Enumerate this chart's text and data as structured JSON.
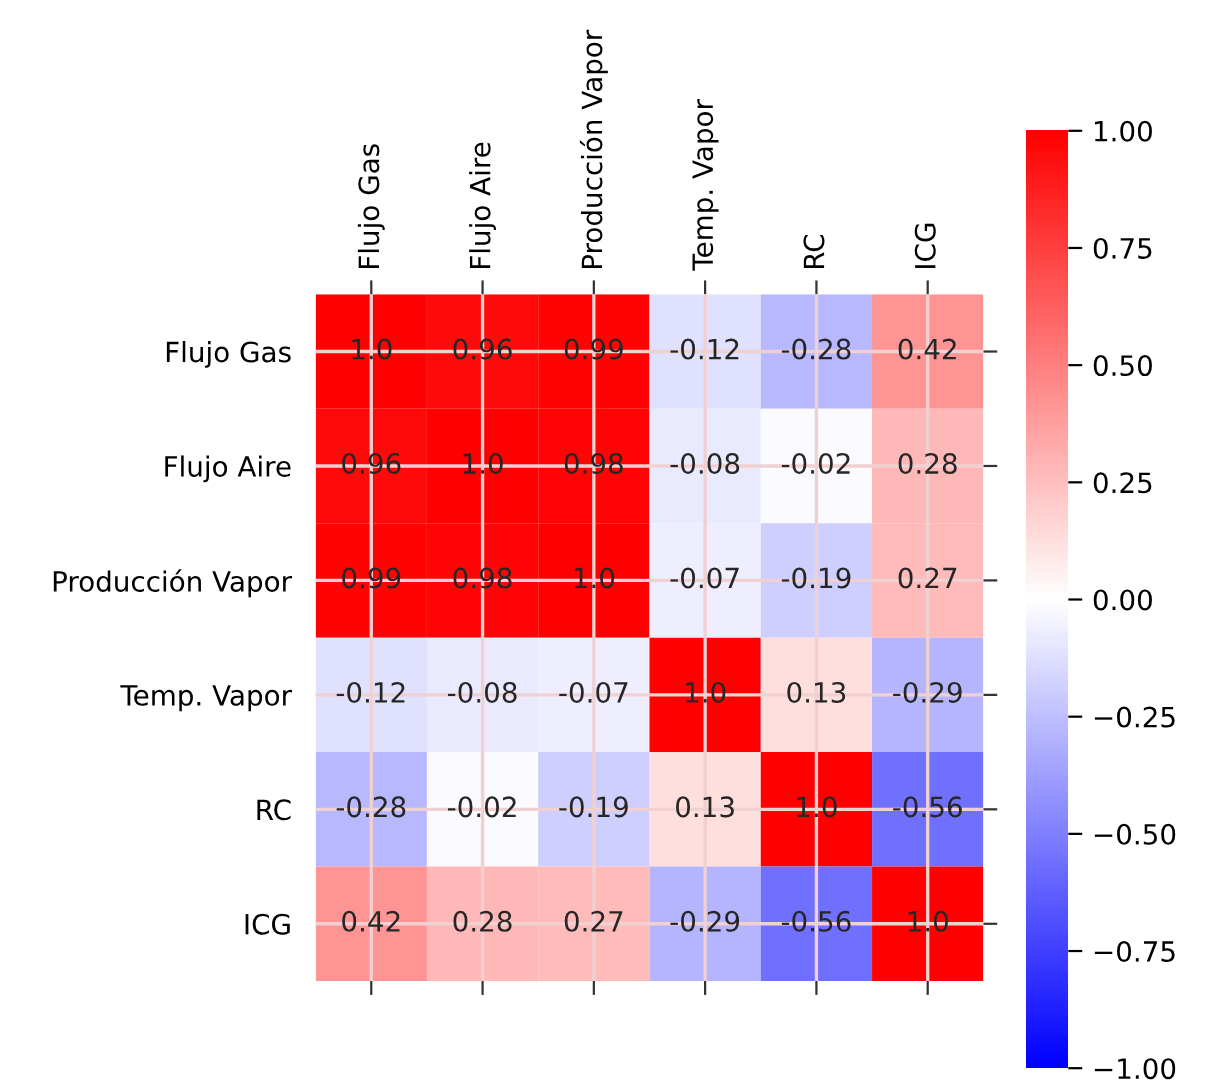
{
  "chart_data": {
    "type": "heatmap",
    "categories": [
      "Flujo Gas",
      "Flujo Aire",
      "Producción Vapor",
      "Temp. Vapor",
      "RC",
      "ICG"
    ],
    "y_categories": [
      "Flujo Gas",
      "Flujo Aire",
      "Producción Vapor",
      "Temp. Vapor",
      "RC",
      "ICG"
    ],
    "cells": [
      [
        1.0,
        0.96,
        0.99,
        -0.12,
        -0.28,
        0.42
      ],
      [
        0.96,
        1.0,
        0.98,
        -0.08,
        -0.02,
        0.28
      ],
      [
        0.99,
        0.98,
        1.0,
        -0.07,
        -0.19,
        0.27
      ],
      [
        -0.12,
        -0.08,
        -0.07,
        1.0,
        0.13,
        -0.29
      ],
      [
        -0.28,
        -0.02,
        -0.19,
        0.13,
        1.0,
        -0.56
      ],
      [
        0.42,
        0.28,
        0.27,
        -0.29,
        -0.56,
        1.0
      ]
    ],
    "cell_labels": [
      [
        "1.0",
        "0.96",
        "0.99",
        "-0.12",
        "-0.28",
        "0.42"
      ],
      [
        "0.96",
        "1.0",
        "0.98",
        "-0.08",
        "-0.02",
        "0.28"
      ],
      [
        "0.99",
        "0.98",
        "1.0",
        "-0.07",
        "-0.19",
        "0.27"
      ],
      [
        "-0.12",
        "-0.08",
        "-0.07",
        "1.0",
        "0.13",
        "-0.29"
      ],
      [
        "-0.28",
        "-0.02",
        "-0.19",
        "0.13",
        "1.0",
        "-0.56"
      ],
      [
        "0.42",
        "0.28",
        "0.27",
        "-0.29",
        "-0.56",
        "1.0"
      ]
    ],
    "clim": [
      -1.0,
      1.0
    ],
    "cticks": [
      {
        "value": 1.0,
        "label": "1.00"
      },
      {
        "value": 0.75,
        "label": "0.75"
      },
      {
        "value": 0.5,
        "label": "0.50"
      },
      {
        "value": 0.25,
        "label": "0.25"
      },
      {
        "value": 0.0,
        "label": "0.00"
      },
      {
        "value": -0.25,
        "label": "−0.25"
      },
      {
        "value": -0.5,
        "label": "−0.50"
      },
      {
        "value": -0.75,
        "label": "−0.75"
      },
      {
        "value": -1.0,
        "label": "−1.00"
      }
    ],
    "grid": true
  }
}
